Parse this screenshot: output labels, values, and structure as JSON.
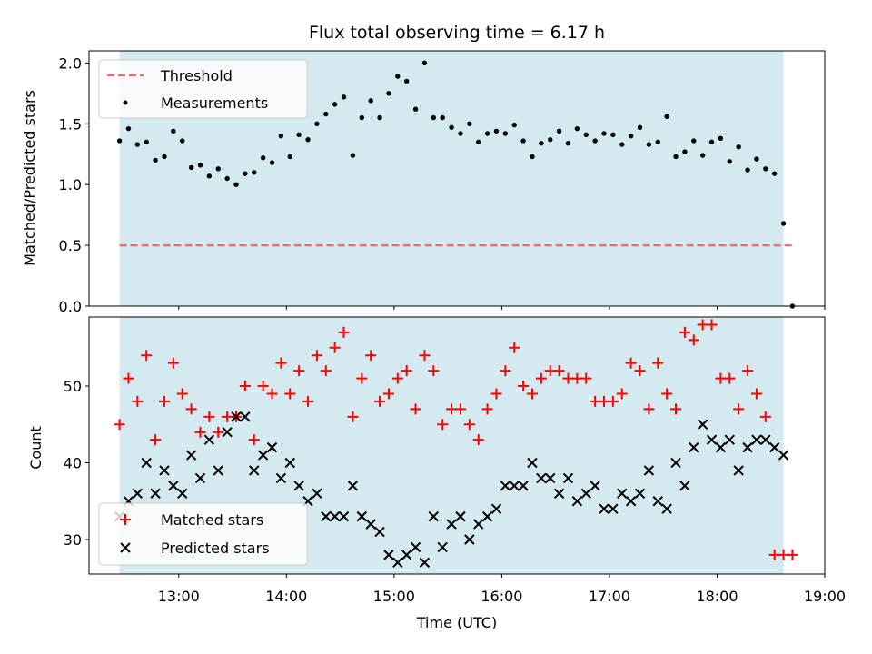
{
  "chart_data": [
    {
      "type": "scatter",
      "title": "Flux total observing time = 6.17 h",
      "xlabel": "",
      "ylabel": "Matched/Predicted stars",
      "ylim": [
        0,
        2.1
      ],
      "yticks": [
        "0.0",
        "0.5",
        "1.0",
        "1.5",
        "2.0"
      ],
      "xlim": [
        "12:10",
        "19:00"
      ],
      "observing_window": [
        "12:27",
        "18:37"
      ],
      "legend_position": "top-left",
      "threshold": {
        "name": "Threshold",
        "value": 0.5,
        "x_range": [
          "12:27",
          "18:42"
        ],
        "color": "#f26b6b"
      },
      "series": [
        {
          "name": "Measurements",
          "color": "#000000",
          "marker": "dot",
          "x": [
            "12:27",
            "12:32",
            "12:37",
            "12:42",
            "12:47",
            "12:52",
            "12:57",
            "13:02",
            "13:07",
            "13:12",
            "13:17",
            "13:22",
            "13:27",
            "13:32",
            "13:37",
            "13:42",
            "13:47",
            "13:52",
            "13:57",
            "14:02",
            "14:07",
            "14:12",
            "14:17",
            "14:22",
            "14:27",
            "14:32",
            "14:37",
            "14:42",
            "14:47",
            "14:52",
            "14:57",
            "15:02",
            "15:07",
            "15:12",
            "15:17",
            "15:22",
            "15:27",
            "15:32",
            "15:37",
            "15:42",
            "15:47",
            "15:52",
            "15:57",
            "16:02",
            "16:07",
            "16:12",
            "16:17",
            "16:22",
            "16:27",
            "16:32",
            "16:37",
            "16:42",
            "16:47",
            "16:52",
            "16:57",
            "17:02",
            "17:07",
            "17:12",
            "17:17",
            "17:22",
            "17:27",
            "17:32",
            "17:37",
            "17:42",
            "17:47",
            "17:52",
            "17:57",
            "18:02",
            "18:07",
            "18:12",
            "18:17",
            "18:22",
            "18:27",
            "18:32",
            "18:37",
            "18:42"
          ],
          "y": [
            1.36,
            1.46,
            1.33,
            1.35,
            1.2,
            1.23,
            1.44,
            1.36,
            1.14,
            1.16,
            1.07,
            1.13,
            1.05,
            1.0,
            1.09,
            1.1,
            1.22,
            1.18,
            1.4,
            1.23,
            1.41,
            1.37,
            1.5,
            1.58,
            1.66,
            1.72,
            1.24,
            1.55,
            1.69,
            1.55,
            1.75,
            1.89,
            1.85,
            1.62,
            2.0,
            1.55,
            1.55,
            1.47,
            1.42,
            1.5,
            1.35,
            1.42,
            1.44,
            1.42,
            1.49,
            1.36,
            1.23,
            1.34,
            1.37,
            1.44,
            1.34,
            1.46,
            1.41,
            1.36,
            1.42,
            1.41,
            1.33,
            1.4,
            1.47,
            1.33,
            1.35,
            1.56,
            1.23,
            1.27,
            1.36,
            1.24,
            1.35,
            1.38,
            1.19,
            1.31,
            1.12,
            1.21,
            1.13,
            1.09,
            0.68,
            0.0
          ]
        }
      ]
    },
    {
      "type": "scatter",
      "title": "",
      "xlabel": "Time (UTC)",
      "ylabel": "Count",
      "ylim": [
        25.5,
        59
      ],
      "yticks": [
        "30",
        "40",
        "50"
      ],
      "xlim": [
        "12:10",
        "19:00"
      ],
      "xticks": [
        "13:00",
        "14:00",
        "15:00",
        "16:00",
        "17:00",
        "18:00",
        "19:00"
      ],
      "observing_window": [
        "12:27",
        "18:37"
      ],
      "legend_position": "bottom-left",
      "series": [
        {
          "name": "Matched stars",
          "color": "#ff0000",
          "marker": "plus",
          "x": [
            "12:27",
            "12:32",
            "12:37",
            "12:42",
            "12:47",
            "12:52",
            "12:57",
            "13:02",
            "13:07",
            "13:12",
            "13:17",
            "13:22",
            "13:27",
            "13:32",
            "13:37",
            "13:42",
            "13:47",
            "13:52",
            "13:57",
            "14:02",
            "14:07",
            "14:12",
            "14:17",
            "14:22",
            "14:27",
            "14:32",
            "14:37",
            "14:42",
            "14:47",
            "14:52",
            "14:57",
            "15:02",
            "15:07",
            "15:12",
            "15:17",
            "15:22",
            "15:27",
            "15:32",
            "15:37",
            "15:42",
            "15:47",
            "15:52",
            "15:57",
            "16:02",
            "16:07",
            "16:12",
            "16:17",
            "16:22",
            "16:27",
            "16:32",
            "16:37",
            "16:42",
            "16:47",
            "16:52",
            "16:57",
            "17:02",
            "17:07",
            "17:12",
            "17:17",
            "17:22",
            "17:27",
            "17:32",
            "17:37",
            "17:42",
            "17:47",
            "17:52",
            "17:57",
            "18:02",
            "18:07",
            "18:12",
            "18:17",
            "18:22",
            "18:27",
            "18:32",
            "18:37",
            "18:42"
          ],
          "y": [
            45,
            51,
            48,
            54,
            43,
            48,
            53,
            49,
            47,
            44,
            46,
            44,
            46,
            46,
            50,
            43,
            50,
            49,
            53,
            49,
            52,
            48,
            54,
            52,
            55,
            57,
            46,
            51,
            54,
            48,
            49,
            51,
            52,
            47,
            54,
            52,
            45,
            47,
            47,
            45,
            43,
            47,
            49,
            52,
            55,
            50,
            49,
            51,
            52,
            52,
            51,
            51,
            51,
            48,
            48,
            48,
            49,
            53,
            52,
            47,
            53,
            49,
            47,
            57,
            56,
            58,
            58,
            51,
            51,
            47,
            52,
            49,
            46,
            28,
            28,
            28
          ]
        },
        {
          "name": "Predicted stars",
          "color": "#000000",
          "marker": "cross",
          "x": [
            "12:27",
            "12:32",
            "12:37",
            "12:42",
            "12:47",
            "12:52",
            "12:57",
            "13:02",
            "13:07",
            "13:12",
            "13:17",
            "13:22",
            "13:27",
            "13:32",
            "13:37",
            "13:42",
            "13:47",
            "13:52",
            "13:57",
            "14:02",
            "14:07",
            "14:12",
            "14:17",
            "14:22",
            "14:27",
            "14:32",
            "14:37",
            "14:42",
            "14:47",
            "14:52",
            "14:57",
            "15:02",
            "15:07",
            "15:12",
            "15:17",
            "15:22",
            "15:27",
            "15:32",
            "15:37",
            "15:42",
            "15:47",
            "15:52",
            "15:57",
            "16:02",
            "16:07",
            "16:12",
            "16:17",
            "16:22",
            "16:27",
            "16:32",
            "16:37",
            "16:42",
            "16:47",
            "16:52",
            "16:57",
            "17:02",
            "17:07",
            "17:12",
            "17:17",
            "17:22",
            "17:27",
            "17:32",
            "17:37",
            "17:42",
            "17:47",
            "17:52",
            "17:57",
            "18:02",
            "18:07",
            "18:12",
            "18:17",
            "18:22",
            "18:27",
            "18:32",
            "18:37"
          ],
          "y": [
            33,
            35,
            36,
            40,
            36,
            39,
            37,
            36,
            41,
            38,
            43,
            39,
            44,
            46,
            46,
            39,
            41,
            42,
            38,
            40,
            37,
            35,
            36,
            33,
            33,
            33,
            37,
            33,
            32,
            31,
            28,
            27,
            28,
            29,
            27,
            33,
            29,
            32,
            33,
            30,
            32,
            33,
            34,
            37,
            37,
            37,
            40,
            38,
            38,
            36,
            38,
            35,
            36,
            37,
            34,
            34,
            36,
            35,
            36,
            39,
            35,
            34,
            40,
            37,
            42,
            45,
            43,
            42,
            43,
            39,
            42,
            43,
            43,
            42,
            41
          ]
        }
      ]
    }
  ]
}
